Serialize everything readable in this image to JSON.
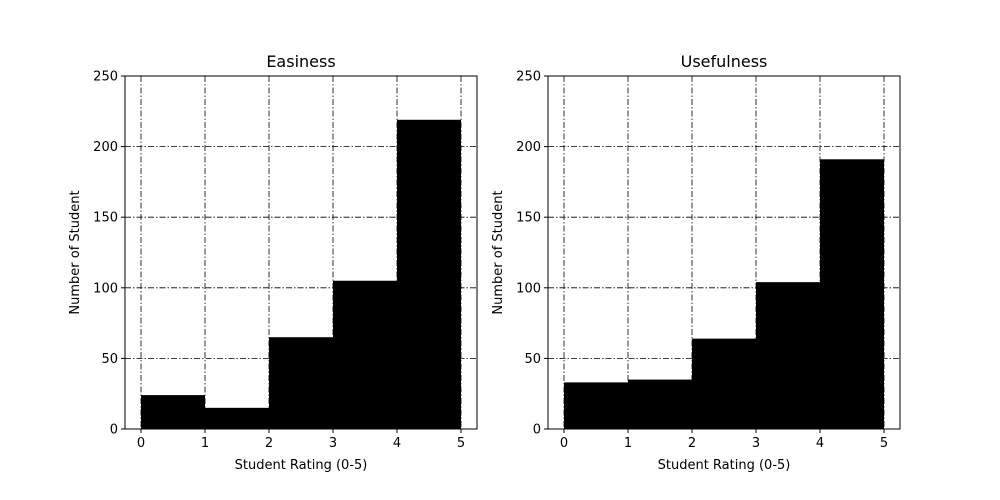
{
  "chart_data": [
    {
      "type": "bar",
      "title": "Easiness",
      "xlabel": "Student Rating (0-5)",
      "ylabel": "Number of Student",
      "bin_edges": [
        0,
        1,
        2,
        3,
        4,
        5
      ],
      "values": [
        24,
        15,
        65,
        105,
        219
      ],
      "xlim": [
        -0.25,
        5.25
      ],
      "ylim": [
        0,
        250
      ],
      "xticks": [
        0,
        1,
        2,
        3,
        4,
        5
      ],
      "yticks": [
        0,
        50,
        100,
        150,
        200,
        250
      ],
      "grid": true,
      "bar_color": "#000000"
    },
    {
      "type": "bar",
      "title": "Usefulness",
      "xlabel": "Student Rating (0-5)",
      "ylabel": "Number of Student",
      "bin_edges": [
        0,
        1,
        2,
        3,
        4,
        5
      ],
      "values": [
        33,
        35,
        64,
        104,
        191
      ],
      "xlim": [
        -0.25,
        5.25
      ],
      "ylim": [
        0,
        250
      ],
      "xticks": [
        0,
        1,
        2,
        3,
        4,
        5
      ],
      "yticks": [
        0,
        50,
        100,
        150,
        200,
        250
      ],
      "grid": true,
      "bar_color": "#000000"
    }
  ]
}
